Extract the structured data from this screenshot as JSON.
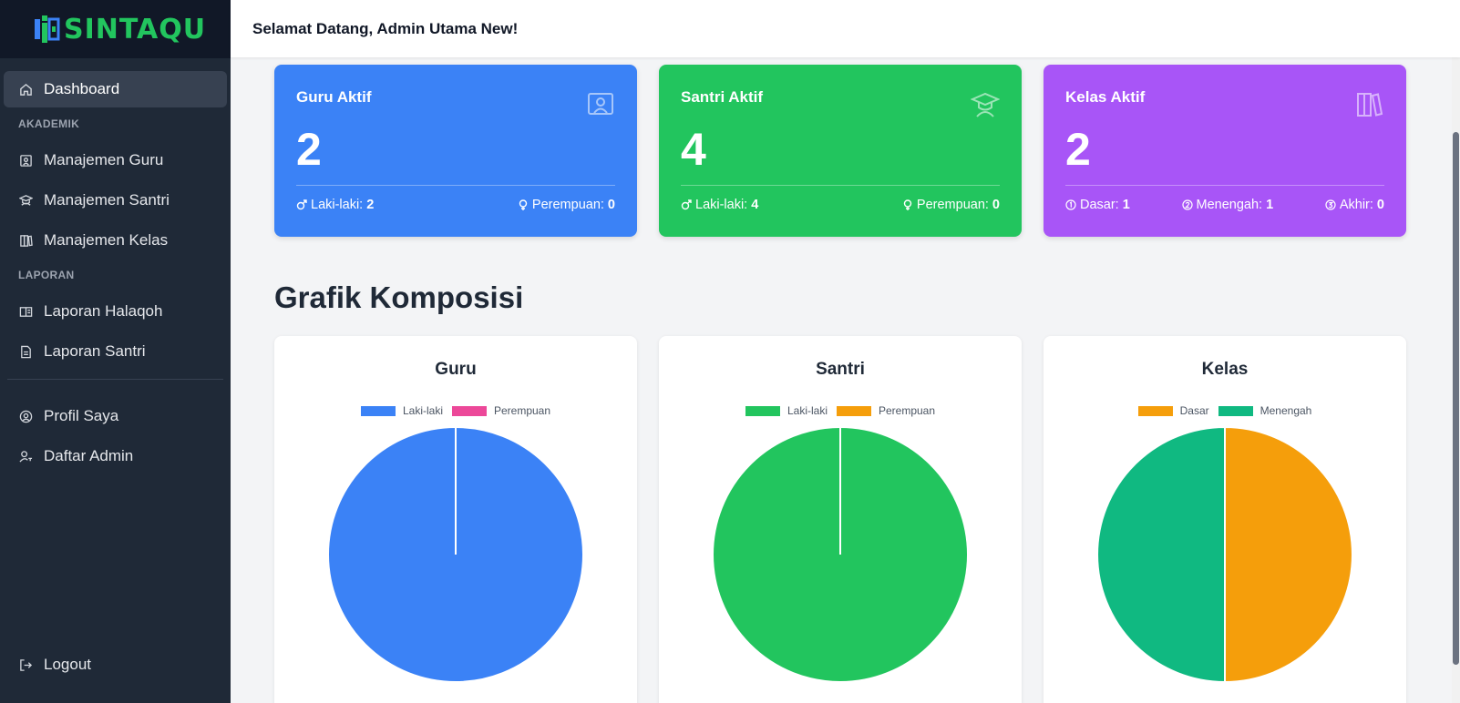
{
  "brand": {
    "name": "SINTAQU",
    "color": "#22c55e"
  },
  "header": {
    "welcome": "Selamat Datang, Admin Utama New!"
  },
  "sidebar": {
    "dashboard": "Dashboard",
    "akademik_label": "AKADEMIK",
    "akademik": [
      "Manajemen Guru",
      "Manajemen Santri",
      "Manajemen Kelas"
    ],
    "laporan_label": "LAPORAN",
    "laporan": [
      "Laporan Halaqoh",
      "Laporan Santri"
    ],
    "account": [
      "Profil Saya",
      "Daftar Admin"
    ],
    "logout": "Logout"
  },
  "cards": [
    {
      "title": "Guru Aktif",
      "value": "2",
      "color": "#3b82f6",
      "icon": "presentation-board-icon",
      "stats": [
        {
          "label": "Laki-laki:",
          "value": "2",
          "icon": "male-icon"
        },
        {
          "label": "Perempuan:",
          "value": "0",
          "icon": "female-icon"
        }
      ]
    },
    {
      "title": "Santri Aktif",
      "value": "4",
      "color": "#22c55e",
      "icon": "graduation-cap-icon",
      "stats": [
        {
          "label": "Laki-laki:",
          "value": "4",
          "icon": "male-icon"
        },
        {
          "label": "Perempuan:",
          "value": "0",
          "icon": "female-icon"
        }
      ]
    },
    {
      "title": "Kelas Aktif",
      "value": "2",
      "color": "#a855f7",
      "icon": "books-icon",
      "stats": [
        {
          "label": "Dasar:",
          "value": "1",
          "icon": "circle-1-icon"
        },
        {
          "label": "Menengah:",
          "value": "1",
          "icon": "circle-2-icon"
        },
        {
          "label": "Akhir:",
          "value": "0",
          "icon": "circle-3-icon"
        }
      ]
    }
  ],
  "section_title": "Grafik Komposisi",
  "chart_data": [
    {
      "type": "pie",
      "title": "Guru",
      "categories": [
        "Laki-laki",
        "Perempuan"
      ],
      "values": [
        2,
        0
      ],
      "colors": [
        "#3b82f6",
        "#ec4899"
      ]
    },
    {
      "type": "pie",
      "title": "Santri",
      "categories": [
        "Laki-laki",
        "Perempuan"
      ],
      "values": [
        4,
        0
      ],
      "colors": [
        "#22c55e",
        "#f59e0b"
      ]
    },
    {
      "type": "pie",
      "title": "Kelas",
      "categories": [
        "Dasar",
        "Menengah"
      ],
      "values": [
        1,
        1
      ],
      "colors": [
        "#f59e0b",
        "#10b981"
      ]
    }
  ]
}
